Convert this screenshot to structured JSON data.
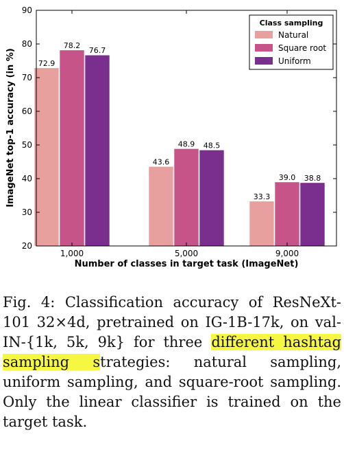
{
  "chart_data": {
    "type": "bar",
    "title": "",
    "xlabel": "Number of classes in target task (ImageNet)",
    "ylabel": "ImageNet top-1 accuracy (in %)",
    "ylim": [
      20,
      90
    ],
    "yticks": [
      "20",
      "30",
      "40",
      "50",
      "60",
      "70",
      "80",
      "90"
    ],
    "categories": [
      "1,000",
      "5,000",
      "9,000"
    ],
    "grid": false,
    "legend": {
      "title": "Class sampling",
      "placement": "top-right"
    },
    "series": [
      {
        "name": "Natural",
        "color": "#e8a09f",
        "values": [
          72.9,
          43.6,
          33.3
        ],
        "labels": [
          "72.9",
          "43.6",
          "33.3"
        ]
      },
      {
        "name": "Square root",
        "color": "#c75488",
        "values": [
          78.2,
          48.9,
          39.0
        ],
        "labels": [
          "78.2",
          "48.9",
          "39.0"
        ]
      },
      {
        "name": "Uniform",
        "color": "#7a2e8e",
        "values": [
          76.7,
          48.5,
          38.8
        ],
        "labels": [
          "76.7",
          "48.5",
          "38.8"
        ]
      }
    ]
  },
  "caption": {
    "prefix": "Fig. 4:  Classification accuracy of ResNeXt-101 32×4d, pretrained on IG-1B-17k, on val-IN-{1k, 5k, 9k} for three ",
    "highlight": "different hashtag sampling s",
    "suffix": "trategies: natural sampling, uniform sampling, and square-root sampling. Only the linear classifier is trained on the target task."
  }
}
